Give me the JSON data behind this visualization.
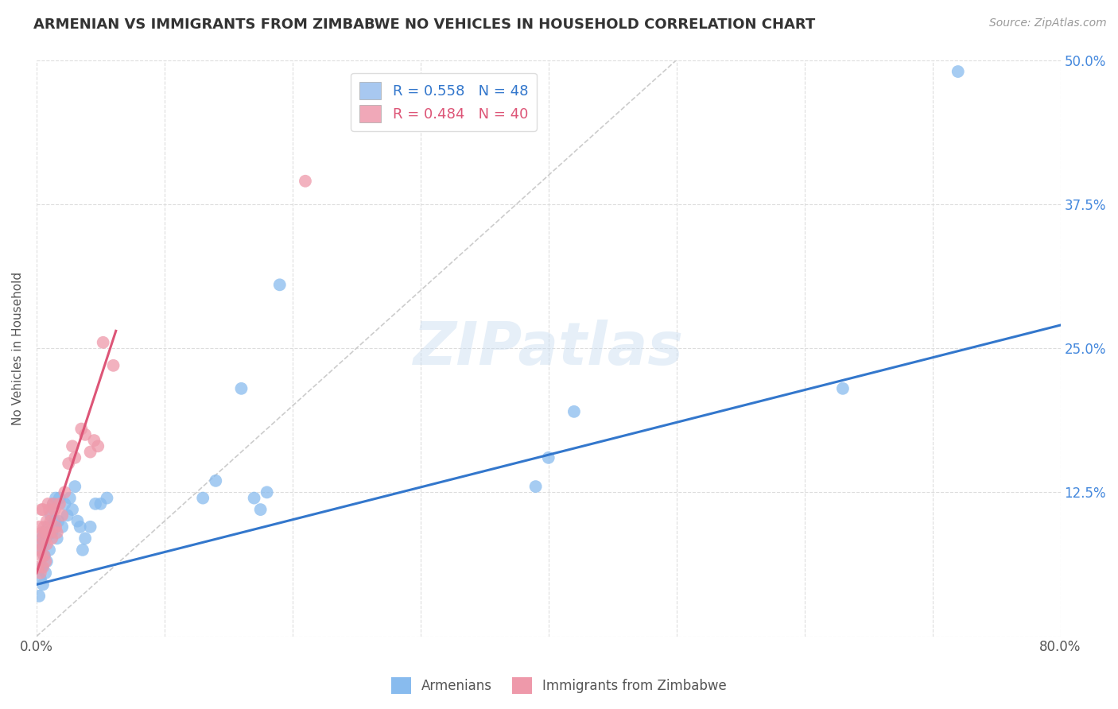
{
  "title": "ARMENIAN VS IMMIGRANTS FROM ZIMBABWE NO VEHICLES IN HOUSEHOLD CORRELATION CHART",
  "source": "Source: ZipAtlas.com",
  "ylabel": "No Vehicles in Household",
  "xlim": [
    0,
    0.8
  ],
  "ylim": [
    0,
    0.5
  ],
  "xticks": [
    0.0,
    0.1,
    0.2,
    0.3,
    0.4,
    0.5,
    0.6,
    0.7,
    0.8
  ],
  "yticks": [
    0.0,
    0.125,
    0.25,
    0.375,
    0.5
  ],
  "legend_entries": [
    {
      "label": "R = 0.558   N = 48",
      "color": "#a8c8f0"
    },
    {
      "label": "R = 0.484   N = 40",
      "color": "#f0a8b8"
    }
  ],
  "legend_labels_bottom": [
    "Armenians",
    "Immigrants from Zimbabwe"
  ],
  "watermark": "ZIPatlas",
  "background_color": "#ffffff",
  "grid_color": "#dddddd",
  "armenians_color": "#88bbee",
  "zimbabwe_color": "#ee99aa",
  "armenians_line_color": "#3377cc",
  "zimbabwe_line_color": "#dd5577",
  "ref_line_color": "#cccccc",
  "armenians_x": [
    0.002,
    0.003,
    0.003,
    0.004,
    0.004,
    0.005,
    0.005,
    0.006,
    0.006,
    0.007,
    0.007,
    0.008,
    0.009,
    0.01,
    0.011,
    0.012,
    0.013,
    0.014,
    0.015,
    0.016,
    0.017,
    0.018,
    0.02,
    0.022,
    0.024,
    0.026,
    0.028,
    0.03,
    0.032,
    0.034,
    0.036,
    0.038,
    0.042,
    0.046,
    0.05,
    0.055,
    0.13,
    0.14,
    0.16,
    0.17,
    0.175,
    0.18,
    0.19,
    0.39,
    0.4,
    0.42,
    0.63,
    0.72
  ],
  "armenians_y": [
    0.035,
    0.05,
    0.075,
    0.06,
    0.085,
    0.045,
    0.08,
    0.07,
    0.09,
    0.055,
    0.085,
    0.065,
    0.095,
    0.075,
    0.105,
    0.09,
    0.115,
    0.1,
    0.12,
    0.085,
    0.1,
    0.12,
    0.095,
    0.115,
    0.105,
    0.12,
    0.11,
    0.13,
    0.1,
    0.095,
    0.075,
    0.085,
    0.095,
    0.115,
    0.115,
    0.12,
    0.12,
    0.135,
    0.215,
    0.12,
    0.11,
    0.125,
    0.305,
    0.13,
    0.155,
    0.195,
    0.215,
    0.49
  ],
  "zimbabwe_x": [
    0.001,
    0.002,
    0.002,
    0.003,
    0.003,
    0.004,
    0.004,
    0.004,
    0.005,
    0.005,
    0.005,
    0.006,
    0.006,
    0.007,
    0.007,
    0.008,
    0.008,
    0.009,
    0.01,
    0.01,
    0.011,
    0.012,
    0.013,
    0.014,
    0.015,
    0.016,
    0.018,
    0.02,
    0.022,
    0.025,
    0.028,
    0.03,
    0.035,
    0.038,
    0.042,
    0.045,
    0.048,
    0.052,
    0.06,
    0.21
  ],
  "zimbabwe_y": [
    0.06,
    0.075,
    0.095,
    0.055,
    0.08,
    0.07,
    0.09,
    0.11,
    0.06,
    0.085,
    0.11,
    0.07,
    0.095,
    0.065,
    0.09,
    0.08,
    0.1,
    0.115,
    0.09,
    0.11,
    0.1,
    0.085,
    0.115,
    0.11,
    0.095,
    0.09,
    0.115,
    0.105,
    0.125,
    0.15,
    0.165,
    0.155,
    0.18,
    0.175,
    0.16,
    0.17,
    0.165,
    0.255,
    0.235,
    0.395
  ],
  "armenians_trend_x": [
    0.0,
    0.8
  ],
  "armenians_trend_y": [
    0.045,
    0.27
  ],
  "zimbabwe_trend_x": [
    0.0,
    0.062
  ],
  "zimbabwe_trend_y": [
    0.055,
    0.265
  ]
}
